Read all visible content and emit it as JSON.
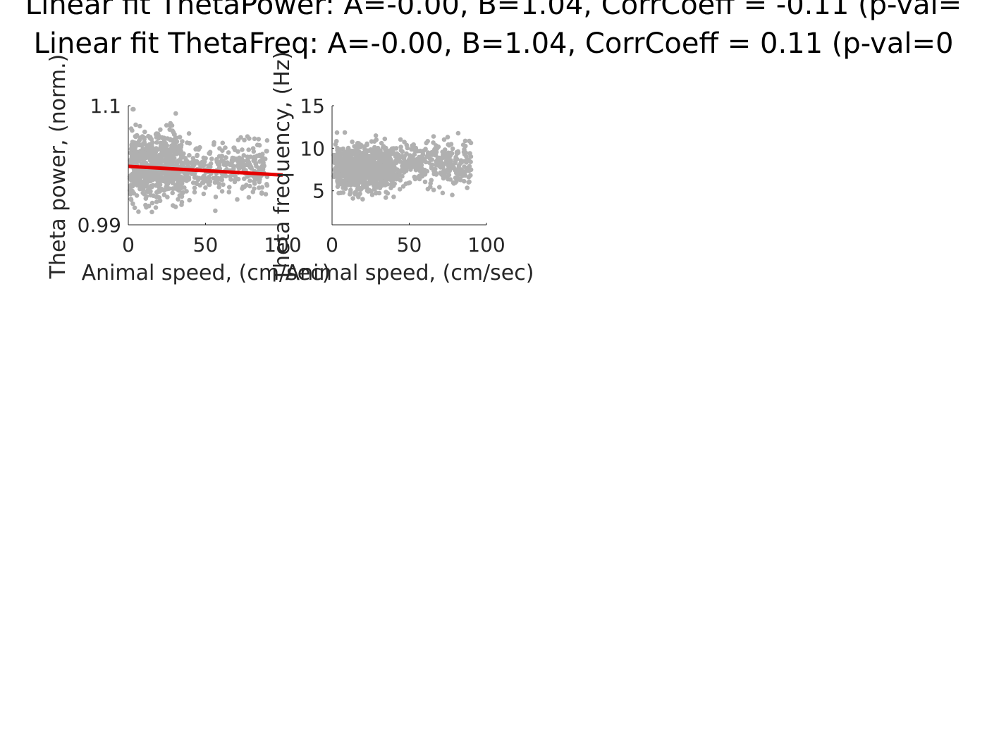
{
  "figure": {
    "title_lines": [
      "Linear fit ThetaPower: A=-0.00, B=1.04, CorrCoeff = -0.11 (p-val=",
      "Linear fit ThetaFreq: A=-0.00, B=1.04, CorrCoeff = 0.11 (p-val=0"
    ]
  },
  "chart_data": [
    {
      "type": "scatter",
      "xlabel": "Animal speed, (cm/sec)",
      "ylabel": "Theta power, (norm.)",
      "xlim": [
        0,
        100
      ],
      "ylim": [
        0.99,
        1.1
      ],
      "xticks": [
        0,
        50,
        100
      ],
      "yticks": [
        0.99,
        1.1
      ],
      "xtick_labels": [
        "0",
        "50",
        "100"
      ],
      "ytick_labels": [
        "0.99",
        "1.1"
      ],
      "grid": false,
      "point_color": "#b0b0b0",
      "fit_color": "#e50000",
      "fit_line": {
        "x": [
          0,
          100
        ],
        "y": [
          1.044,
          1.036
        ]
      },
      "clusters": [
        {
          "x_range": [
            1,
            35
          ],
          "y_mean": 1.045,
          "y_sd": 0.017,
          "count": 650,
          "seed": 11
        },
        {
          "x_range": [
            35,
            90
          ],
          "y_mean": 1.043,
          "y_sd": 0.011,
          "count": 330,
          "seed": 23
        }
      ]
    },
    {
      "type": "scatter",
      "xlabel": "Animal speed, (cm/sec)",
      "ylabel": "Theta frequency, (Hz)",
      "xlim": [
        0,
        100
      ],
      "ylim": [
        1,
        15
      ],
      "xticks": [
        0,
        50,
        100
      ],
      "yticks": [
        5,
        10,
        15
      ],
      "xtick_labels": [
        "0",
        "50",
        "100"
      ],
      "ytick_labels": [
        "5",
        "10",
        "15"
      ],
      "grid": false,
      "point_color": "#b0b0b0",
      "clusters": [
        {
          "x_range": [
            1,
            40
          ],
          "y_mean": 7.6,
          "y_sd": 1.4,
          "count": 700,
          "seed": 37
        },
        {
          "x_range": [
            40,
            90
          ],
          "y_mean": 8.2,
          "y_sd": 1.3,
          "count": 330,
          "seed": 53
        }
      ]
    }
  ]
}
